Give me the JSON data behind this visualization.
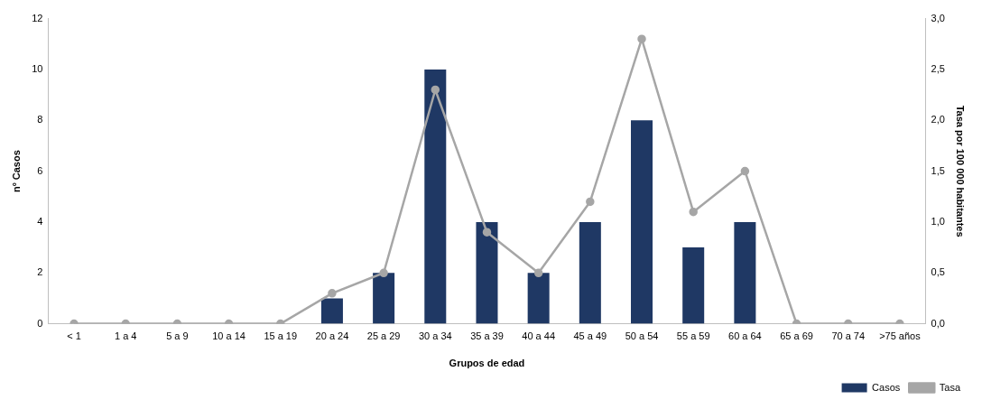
{
  "chart_data": {
    "type": "bar",
    "xlabel": "Grupos de edad",
    "ylabel": "nº Casos",
    "y2label": "Tasa por 100 000 habitantes",
    "categories": [
      "< 1",
      "1 a 4",
      "5 a 9",
      "10 a 14",
      "15 a 19",
      "20 a 24",
      "25 a 29",
      "30 a 34",
      "35 a 39",
      "40 a 44",
      "45 a 49",
      "50 a 54",
      "55 a 59",
      "60 a 64",
      "65 a 69",
      "70 a 74",
      ">75 años"
    ],
    "series": [
      {
        "name": "Casos",
        "color": "#1f3864",
        "values": [
          0,
          0,
          0,
          0,
          0,
          1,
          2,
          10,
          4,
          2,
          4,
          8,
          3,
          4,
          0,
          0,
          0
        ]
      },
      {
        "name": "Tasa",
        "type": "line",
        "axis": "y2",
        "color": "#a6a6a6",
        "marker": "circle",
        "values": [
          0,
          0,
          0,
          0,
          0,
          0.3,
          0.5,
          2.3,
          0.9,
          0.5,
          1.2,
          2.8,
          1.1,
          1.5,
          0,
          0,
          0
        ]
      }
    ],
    "ylim": [
      0,
      12
    ],
    "yticks": [
      0,
      2,
      4,
      6,
      8,
      10,
      12
    ],
    "y2lim": [
      0,
      3
    ],
    "y2ticks": [
      {
        "value": 0,
        "label": "0,0"
      },
      {
        "value": 0.5,
        "label": "0,5"
      },
      {
        "value": 1,
        "label": "1,0"
      },
      {
        "value": 1.5,
        "label": "1,5"
      },
      {
        "value": 2,
        "label": "2,0"
      },
      {
        "value": 2.5,
        "label": "2,5"
      },
      {
        "value": 3,
        "label": "3,0"
      }
    ],
    "grid": false,
    "legend": "bottom right"
  }
}
